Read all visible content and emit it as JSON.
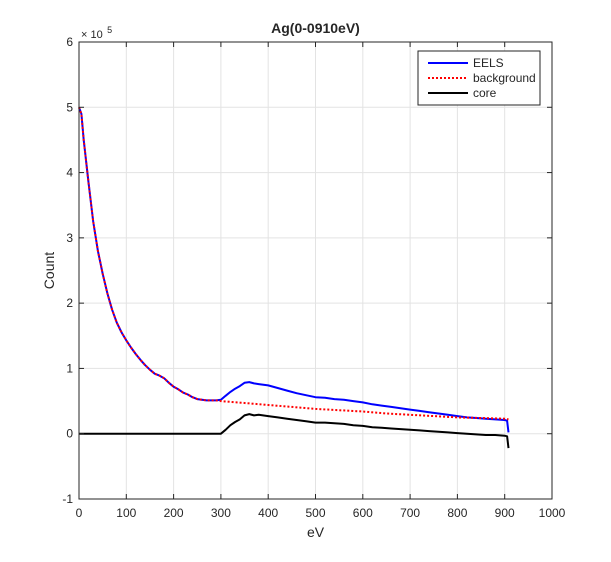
{
  "chart_data": {
    "type": "line",
    "title": "Ag(0-0910eV)",
    "xlabel": "eV",
    "ylabel": "Count",
    "xlim": [
      0,
      1000
    ],
    "ylim": [
      -1,
      6
    ],
    "xticks": [
      "0",
      "100",
      "200",
      "300",
      "400",
      "500",
      "600",
      "700",
      "800",
      "900",
      "1000"
    ],
    "yticks": [
      "-1",
      "0",
      "1",
      "2",
      "3",
      "4",
      "5",
      "6"
    ],
    "y_exponent_base": "× 10",
    "y_exponent_power": "5",
    "y_units_note": "values in units of 10^5 counts",
    "grid": true,
    "legend_position": "top-right",
    "series": [
      {
        "name": "EELS",
        "color": "#0000ff",
        "style": "solid",
        "points": [
          [
            0,
            5.0
          ],
          [
            5,
            4.9
          ],
          [
            10,
            4.5
          ],
          [
            20,
            3.85
          ],
          [
            30,
            3.25
          ],
          [
            40,
            2.8
          ],
          [
            50,
            2.45
          ],
          [
            60,
            2.15
          ],
          [
            70,
            1.9
          ],
          [
            80,
            1.7
          ],
          [
            90,
            1.55
          ],
          [
            100,
            1.43
          ],
          [
            110,
            1.32
          ],
          [
            120,
            1.22
          ],
          [
            130,
            1.13
          ],
          [
            140,
            1.05
          ],
          [
            150,
            0.98
          ],
          [
            160,
            0.92
          ],
          [
            170,
            0.89
          ],
          [
            180,
            0.85
          ],
          [
            190,
            0.78
          ],
          [
            200,
            0.72
          ],
          [
            210,
            0.68
          ],
          [
            220,
            0.63
          ],
          [
            230,
            0.6
          ],
          [
            240,
            0.56
          ],
          [
            250,
            0.53
          ],
          [
            260,
            0.52
          ],
          [
            270,
            0.51
          ],
          [
            280,
            0.51
          ],
          [
            290,
            0.51
          ],
          [
            300,
            0.52
          ],
          [
            310,
            0.58
          ],
          [
            320,
            0.64
          ],
          [
            330,
            0.69
          ],
          [
            340,
            0.73
          ],
          [
            350,
            0.78
          ],
          [
            360,
            0.79
          ],
          [
            370,
            0.77
          ],
          [
            380,
            0.76
          ],
          [
            400,
            0.74
          ],
          [
            420,
            0.7
          ],
          [
            440,
            0.66
          ],
          [
            460,
            0.62
          ],
          [
            480,
            0.59
          ],
          [
            500,
            0.56
          ],
          [
            520,
            0.55
          ],
          [
            540,
            0.53
          ],
          [
            560,
            0.52
          ],
          [
            580,
            0.5
          ],
          [
            600,
            0.48
          ],
          [
            620,
            0.45
          ],
          [
            640,
            0.43
          ],
          [
            660,
            0.41
          ],
          [
            680,
            0.39
          ],
          [
            700,
            0.37
          ],
          [
            720,
            0.35
          ],
          [
            740,
            0.33
          ],
          [
            760,
            0.31
          ],
          [
            780,
            0.29
          ],
          [
            800,
            0.27
          ],
          [
            820,
            0.25
          ],
          [
            840,
            0.24
          ],
          [
            860,
            0.23
          ],
          [
            880,
            0.22
          ],
          [
            900,
            0.21
          ],
          [
            905,
            0.2
          ],
          [
            908,
            0.02
          ]
        ]
      },
      {
        "name": "background",
        "color": "#ff0000",
        "style": "dotted",
        "points": [
          [
            0,
            5.0
          ],
          [
            5,
            4.9
          ],
          [
            10,
            4.5
          ],
          [
            20,
            3.85
          ],
          [
            30,
            3.25
          ],
          [
            40,
            2.8
          ],
          [
            50,
            2.45
          ],
          [
            60,
            2.15
          ],
          [
            70,
            1.9
          ],
          [
            80,
            1.7
          ],
          [
            90,
            1.55
          ],
          [
            100,
            1.43
          ],
          [
            110,
            1.32
          ],
          [
            120,
            1.22
          ],
          [
            130,
            1.13
          ],
          [
            140,
            1.05
          ],
          [
            150,
            0.98
          ],
          [
            160,
            0.92
          ],
          [
            170,
            0.89
          ],
          [
            180,
            0.85
          ],
          [
            190,
            0.78
          ],
          [
            200,
            0.72
          ],
          [
            210,
            0.68
          ],
          [
            220,
            0.63
          ],
          [
            230,
            0.6
          ],
          [
            240,
            0.56
          ],
          [
            250,
            0.53
          ],
          [
            260,
            0.52
          ],
          [
            270,
            0.51
          ],
          [
            280,
            0.51
          ],
          [
            290,
            0.51
          ],
          [
            300,
            0.5
          ],
          [
            350,
            0.47
          ],
          [
            400,
            0.44
          ],
          [
            450,
            0.41
          ],
          [
            500,
            0.38
          ],
          [
            550,
            0.36
          ],
          [
            600,
            0.34
          ],
          [
            650,
            0.31
          ],
          [
            700,
            0.29
          ],
          [
            750,
            0.27
          ],
          [
            800,
            0.25
          ],
          [
            850,
            0.24
          ],
          [
            900,
            0.23
          ],
          [
            908,
            0.22
          ]
        ]
      },
      {
        "name": "core",
        "color": "#000000",
        "style": "solid",
        "points": [
          [
            0,
            0.0
          ],
          [
            50,
            0.0
          ],
          [
            100,
            0.0
          ],
          [
            150,
            0.0
          ],
          [
            200,
            0.0
          ],
          [
            250,
            0.0
          ],
          [
            280,
            0.0
          ],
          [
            300,
            0.0
          ],
          [
            310,
            0.06
          ],
          [
            320,
            0.13
          ],
          [
            330,
            0.18
          ],
          [
            340,
            0.22
          ],
          [
            350,
            0.28
          ],
          [
            360,
            0.3
          ],
          [
            370,
            0.28
          ],
          [
            380,
            0.29
          ],
          [
            400,
            0.27
          ],
          [
            420,
            0.25
          ],
          [
            440,
            0.23
          ],
          [
            460,
            0.21
          ],
          [
            480,
            0.19
          ],
          [
            500,
            0.17
          ],
          [
            520,
            0.17
          ],
          [
            540,
            0.16
          ],
          [
            560,
            0.15
          ],
          [
            580,
            0.13
          ],
          [
            600,
            0.12
          ],
          [
            620,
            0.1
          ],
          [
            640,
            0.09
          ],
          [
            660,
            0.08
          ],
          [
            680,
            0.07
          ],
          [
            700,
            0.06
          ],
          [
            720,
            0.05
          ],
          [
            740,
            0.04
          ],
          [
            760,
            0.03
          ],
          [
            780,
            0.02
          ],
          [
            800,
            0.01
          ],
          [
            820,
            0.0
          ],
          [
            840,
            -0.01
          ],
          [
            860,
            -0.02
          ],
          [
            880,
            -0.02
          ],
          [
            900,
            -0.03
          ],
          [
            905,
            -0.04
          ],
          [
            908,
            -0.22
          ]
        ]
      }
    ]
  }
}
